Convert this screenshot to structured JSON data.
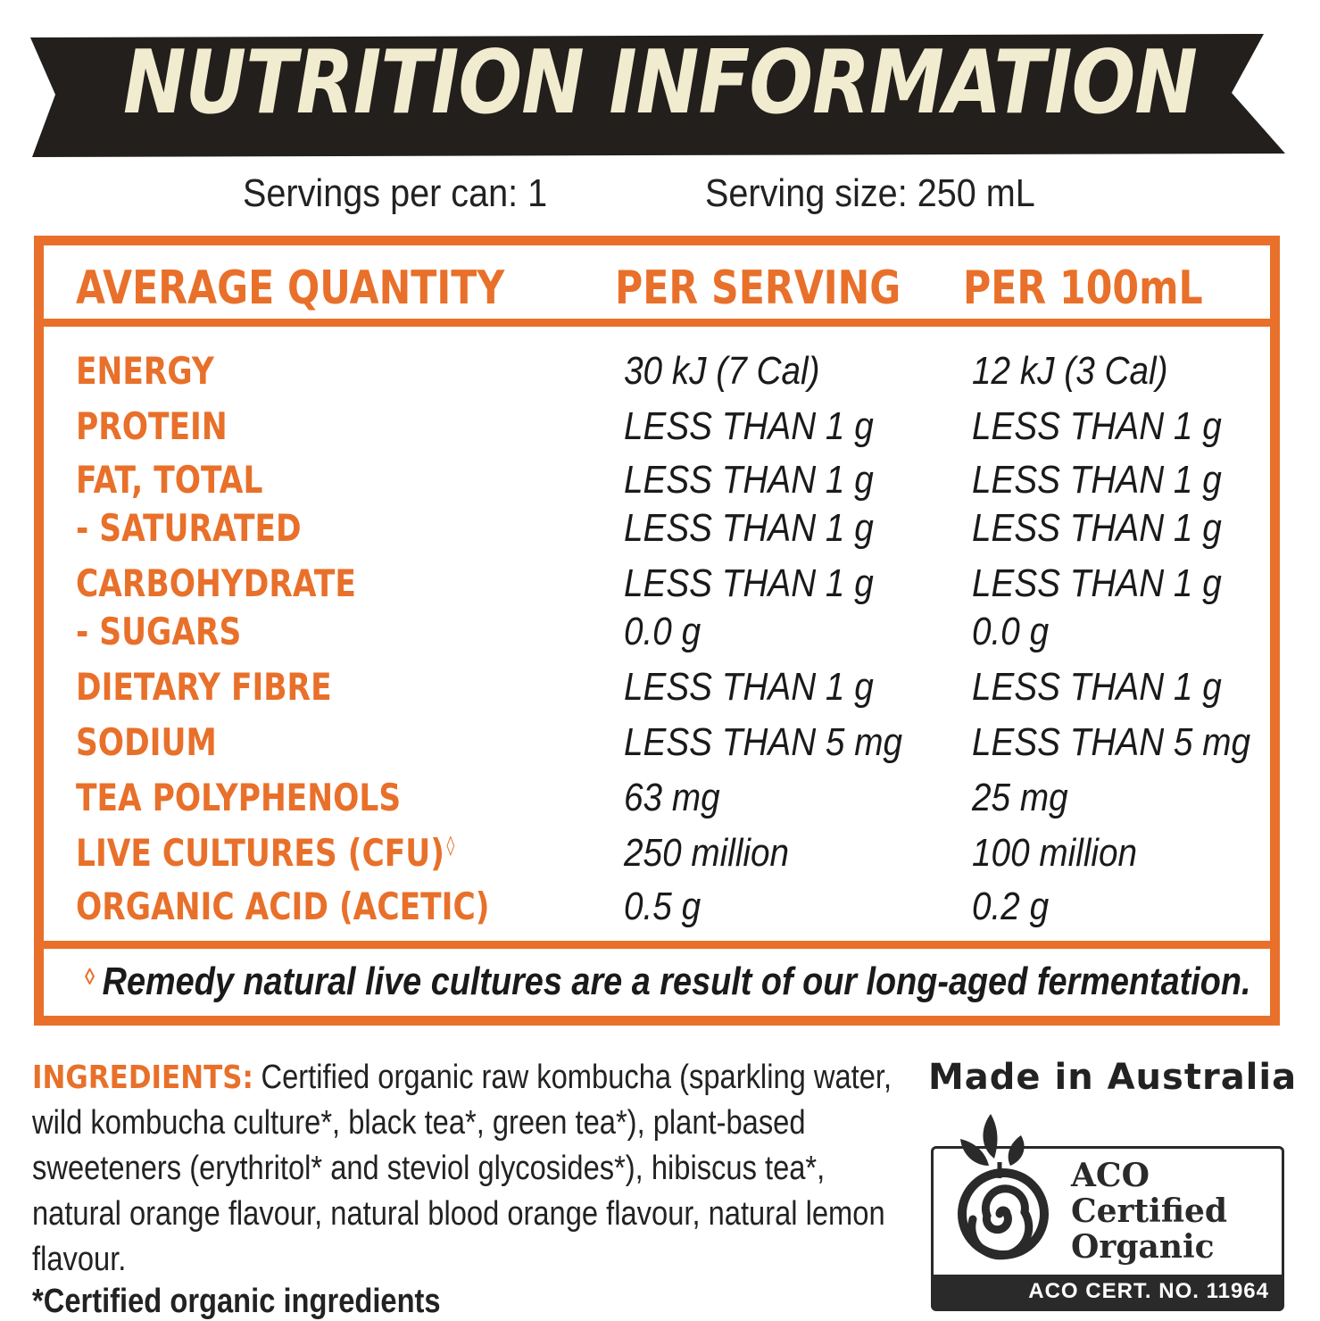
{
  "banner": {
    "title": "NUTRITION INFORMATION"
  },
  "servings": {
    "per_can": "Servings per can: 1",
    "size": "Serving size: 250 mL"
  },
  "table": {
    "headers": [
      "AVERAGE QUANTITY",
      "PER SERVING",
      "PER 100mL"
    ],
    "rows": [
      {
        "label": "ENERGY",
        "per_serving": "30 kJ (7 Cal)",
        "per_100ml": "12 kJ (3 Cal)"
      },
      {
        "label": "PROTEIN",
        "per_serving": "LESS THAN 1 g",
        "per_100ml": "LESS THAN 1 g"
      },
      {
        "label": "FAT, TOTAL",
        "per_serving": "LESS THAN 1 g",
        "per_100ml": "LESS THAN 1 g"
      },
      {
        "label": "- SATURATED",
        "per_serving": "LESS THAN 1 g",
        "per_100ml": "LESS THAN 1 g"
      },
      {
        "label": "CARBOHYDRATE",
        "per_serving": "LESS THAN 1 g",
        "per_100ml": "LESS THAN 1 g"
      },
      {
        "label": "- SUGARS",
        "per_serving": "0.0 g",
        "per_100ml": "0.0 g"
      },
      {
        "label": "DIETARY FIBRE",
        "per_serving": "LESS THAN 1 g",
        "per_100ml": "LESS THAN 1 g"
      },
      {
        "label": "SODIUM",
        "per_serving": "LESS THAN 5 mg",
        "per_100ml": "LESS THAN 5 mg"
      },
      {
        "label": "TEA POLYPHENOLS",
        "per_serving": "63 mg",
        "per_100ml": "25 mg"
      },
      {
        "label": "LIVE CULTURES (CFU)",
        "per_serving": "250 million",
        "per_100ml": "100 million"
      },
      {
        "label": "ORGANIC ACID (ACETIC)",
        "per_serving": "0.5 g",
        "per_100ml": "0.2 g"
      }
    ],
    "superscript_mark": "◊",
    "footnote": "Remedy natural live cultures are a result of our long-aged fermentation."
  },
  "ingredients": {
    "label": "INGREDIENTS:",
    "text": "Certified organic raw kombucha (sparkling water, wild kombucha culture*, black tea*, green tea*), plant-based sweeteners (erythritol* and steviol glycosides*), hibiscus tea*, natural orange flavour, natural blood orange flavour, natural lemon flavour."
  },
  "certified_note": "*Certified organic ingredients",
  "made_in": "Made in Australia",
  "aco": {
    "line1": "ACO",
    "line2": "Certified",
    "line3": "Organic",
    "cert_no": "ACO CERT. NO. 11964",
    "icon": "aco-spiral-leaf-icon"
  },
  "colors": {
    "orange": "#e8702a",
    "banner": "#231f1c",
    "banner_text": "#f1ecd0",
    "text": "#1a1a1a"
  }
}
